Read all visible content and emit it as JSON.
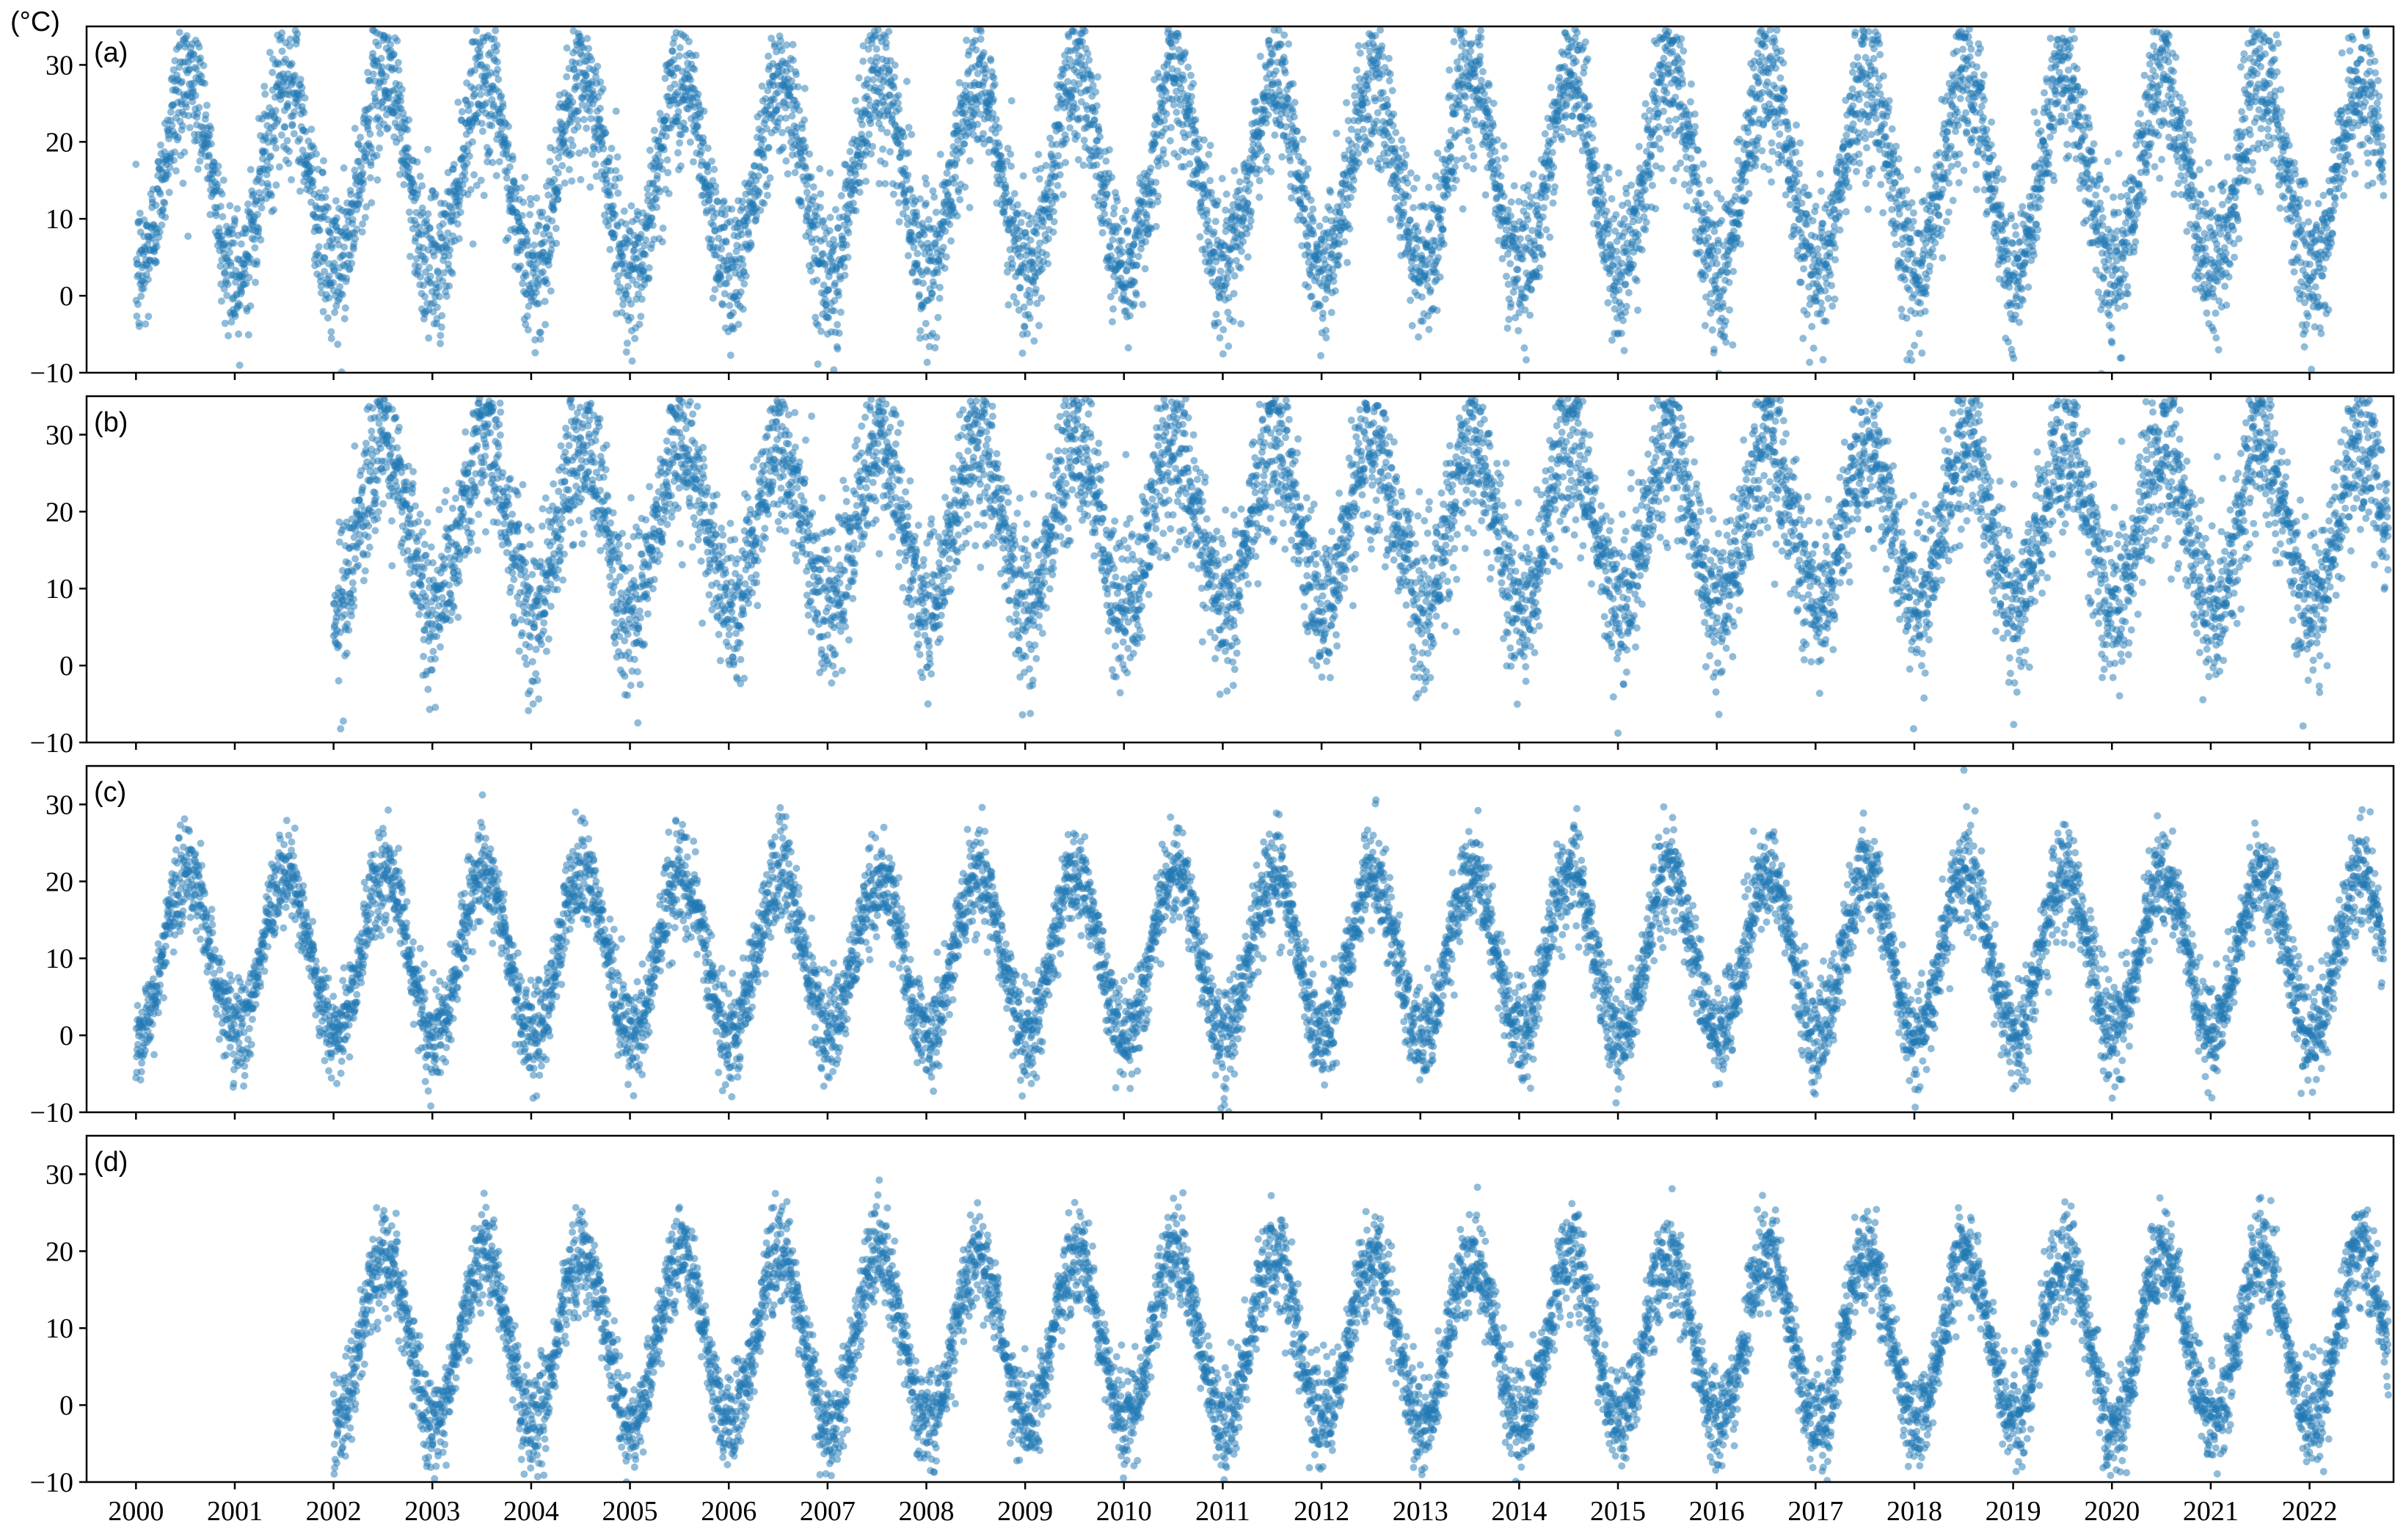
{
  "figure": {
    "unit_label": "(°C)"
  },
  "colors": {
    "point": "#1f77b4",
    "axes": "#000000",
    "background": "#ffffff"
  },
  "chart_data": {
    "type": "scatter",
    "shared_x": {
      "range": [
        1999.5,
        2022.85
      ],
      "tick_labels": [
        "2000",
        "2001",
        "2002",
        "2003",
        "2004",
        "2005",
        "2006",
        "2007",
        "2008",
        "2009",
        "2010",
        "2011",
        "2012",
        "2013",
        "2014",
        "2015",
        "2016",
        "2017",
        "2018",
        "2019",
        "2020",
        "2021",
        "2022"
      ],
      "tick_values": [
        2000,
        2001,
        2002,
        2003,
        2004,
        2005,
        2006,
        2007,
        2008,
        2009,
        2010,
        2011,
        2012,
        2013,
        2014,
        2015,
        2016,
        2017,
        2018,
        2019,
        2020,
        2021,
        2022
      ]
    },
    "y_axis": {
      "range": [
        -10,
        35
      ],
      "ticks": [
        -10,
        0,
        10,
        20,
        30
      ],
      "tick_labels": [
        "−10",
        "0",
        "10",
        "20",
        "30"
      ]
    },
    "grid": false,
    "legend": "none",
    "panels": [
      {
        "label": "(a)",
        "start_year": 2000.0,
        "end_year": 2022.75,
        "seasonal_mean": 15.5,
        "seasonal_amplitude": 12.5,
        "noise_sd": 4.2,
        "peak_phase": 0.52
      },
      {
        "label": "(b)",
        "start_year": 2002.0,
        "end_year": 2022.8,
        "seasonal_mean": 18.0,
        "seasonal_amplitude": 10.5,
        "noise_sd": 4.6,
        "peak_phase": 0.52
      },
      {
        "label": "(c)",
        "start_year": 2000.0,
        "end_year": 2022.75,
        "seasonal_mean": 10.5,
        "seasonal_amplitude": 10.5,
        "noise_sd": 2.8,
        "peak_phase": 0.52
      },
      {
        "label": "(d)",
        "start_year": 2002.0,
        "end_year": 2022.8,
        "seasonal_mean": 8.5,
        "seasonal_amplitude": 11.0,
        "noise_sd": 2.8,
        "peak_phase": 0.52
      }
    ]
  }
}
